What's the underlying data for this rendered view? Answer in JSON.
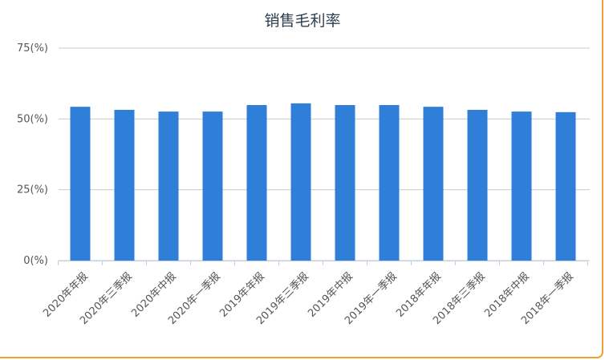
{
  "chart_data": {
    "type": "bar",
    "title": "销售毛利率",
    "categories": [
      "2020年年报",
      "2020年三季报",
      "2020年中报",
      "2020年一季报",
      "2019年年报",
      "2019年三季报",
      "2019年中报",
      "2019年一季报",
      "2018年年报",
      "2018年三季报",
      "2018年中报",
      "2018年一季报"
    ],
    "values": [
      54.3,
      53.2,
      52.6,
      52.6,
      54.9,
      55.5,
      54.9,
      54.9,
      54.3,
      53.2,
      52.6,
      52.4
    ],
    "color": "#2f7ed8",
    "ylim": [
      0,
      75
    ],
    "yticks": [
      {
        "value": 0,
        "label": "0(%)"
      },
      {
        "value": 25,
        "label": "25(%)"
      },
      {
        "value": 50,
        "label": "50(%)"
      },
      {
        "value": 75,
        "label": "75(%)"
      }
    ],
    "grid": true
  }
}
